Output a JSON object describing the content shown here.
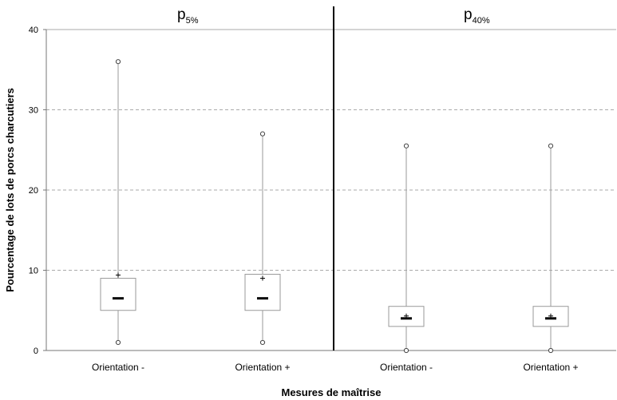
{
  "chart_data": {
    "type": "box",
    "xlabel": "Mesures de maîtrise",
    "ylabel": "Pourcentage de lots de porcs charcutiers",
    "ylim": [
      0,
      40
    ],
    "yticks": [
      "0",
      "10",
      "20",
      "30",
      "40"
    ],
    "grid": "horizontal dashed",
    "panels": [
      {
        "title_main": "p",
        "title_sub": "5%",
        "categories": [
          "Orientation -",
          "Orientation +"
        ],
        "boxes": [
          {
            "min": 1,
            "q1": 5,
            "median": 6.5,
            "q3": 9,
            "max": 36,
            "mean": 9.4
          },
          {
            "min": 1,
            "q1": 5,
            "median": 6.5,
            "q3": 9.5,
            "max": 27,
            "mean": 9
          }
        ]
      },
      {
        "title_main": "p",
        "title_sub": "40%",
        "categories": [
          "Orientation -",
          "Orientation +"
        ],
        "boxes": [
          {
            "min": 0,
            "q1": 3,
            "median": 4,
            "q3": 5.5,
            "max": 25.5,
            "mean": 4.3
          },
          {
            "min": 0,
            "q1": 3,
            "median": 4,
            "q3": 5.5,
            "max": 25.5,
            "mean": 4.3
          }
        ]
      }
    ]
  }
}
